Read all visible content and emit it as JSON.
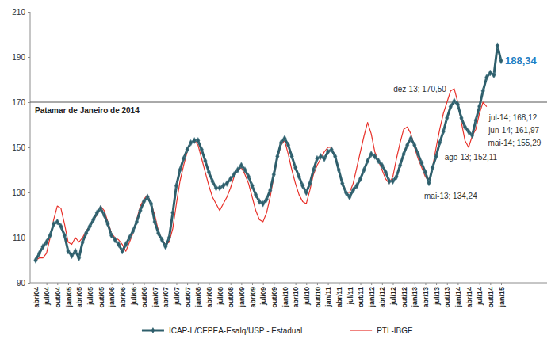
{
  "chart_data": {
    "type": "line",
    "categories": [
      "abr/04",
      null,
      null,
      "jul/04",
      null,
      null,
      "out/04",
      null,
      null,
      "jan/05",
      null,
      null,
      "abr/05",
      null,
      null,
      "jul/05",
      null,
      null,
      "out/05",
      null,
      null,
      "jan/06",
      null,
      null,
      "abr/06",
      null,
      null,
      "jul/06",
      null,
      null,
      "out/06",
      null,
      null,
      "jan/07",
      null,
      null,
      "abr/07",
      null,
      null,
      "jul/07",
      null,
      null,
      "out/07",
      null,
      null,
      "jan/08",
      null,
      null,
      "abr/08",
      null,
      null,
      "jul/08",
      null,
      null,
      "out/08",
      null,
      null,
      "jan/09",
      null,
      null,
      "abr/09",
      null,
      null,
      "jul/09",
      null,
      null,
      "out/09",
      null,
      null,
      "jan/10",
      null,
      null,
      "abr/10",
      null,
      null,
      "jul/10",
      null,
      null,
      "out/10",
      null,
      null,
      "jan/11",
      null,
      null,
      "abr/11",
      null,
      null,
      "jul/11",
      null,
      null,
      "out/11",
      null,
      null,
      "jan/12",
      null,
      null,
      "abr/12",
      null,
      null,
      "jul/12",
      null,
      null,
      "out/12",
      null,
      null,
      "jan/13",
      null,
      null,
      "abr/13",
      null,
      null,
      "jul/13",
      null,
      null,
      "out/13",
      null,
      null,
      "jan/14",
      null,
      null,
      "abr/14",
      null,
      null,
      "jul/14",
      null,
      null,
      "out/14",
      null,
      null,
      "jan/15"
    ],
    "series": [
      {
        "name": "ICAP-L/CEPEA-Esalq/USP - Estadual",
        "color": "#2e5e6b",
        "marker": "diamond",
        "line_style": "solid",
        "values": [
          100,
          103,
          106,
          108,
          111,
          116,
          117,
          115,
          111,
          104,
          102,
          104,
          101,
          108,
          112,
          115,
          118,
          121,
          123,
          120,
          116,
          111,
          109,
          107,
          104,
          107,
          110,
          113,
          117,
          122,
          126,
          128,
          125,
          117,
          112,
          109,
          106,
          110,
          121,
          133,
          140,
          145,
          149,
          152,
          153,
          153,
          149,
          144,
          139,
          135,
          132,
          132,
          133,
          134,
          136,
          138,
          140,
          142,
          140,
          137,
          133,
          129,
          126,
          125,
          127,
          131,
          138,
          146,
          152,
          154,
          151,
          146,
          141,
          137,
          133,
          130,
          134,
          140,
          145,
          146,
          145,
          148,
          149,
          146,
          140,
          134,
          130,
          128,
          131,
          133,
          136,
          140,
          144,
          147,
          146,
          144,
          142,
          139,
          135,
          135,
          137,
          142,
          147,
          151,
          154,
          151,
          147,
          143,
          139,
          134.24,
          141,
          146,
          152.11,
          157,
          163,
          168,
          170.5,
          169,
          163,
          159,
          157,
          155.29,
          161.97,
          168.12,
          175,
          181,
          183,
          182,
          195,
          188.34
        ]
      },
      {
        "name": "PTL-IBGE",
        "color": "#e8312a",
        "marker": "none",
        "line_style": "solid",
        "values": [
          100,
          101,
          101,
          103,
          110,
          118,
          124,
          123,
          116,
          108,
          107,
          110,
          108,
          110,
          113,
          115,
          118,
          120,
          124,
          122,
          117,
          112,
          110,
          109,
          107,
          104,
          108,
          112,
          118,
          124,
          127,
          129,
          125,
          120,
          113,
          109,
          107,
          108,
          114,
          125,
          135,
          142,
          148,
          152,
          153,
          151,
          145,
          139,
          133,
          128,
          125,
          122,
          125,
          128,
          132,
          137,
          140,
          141,
          138,
          134,
          128,
          122,
          118,
          117,
          121,
          128,
          137,
          145,
          151,
          153,
          147,
          140,
          134,
          129,
          126,
          125,
          131,
          138,
          142,
          145,
          148,
          150,
          150,
          146,
          140,
          134,
          130,
          130,
          134,
          141,
          148,
          155,
          161,
          156,
          148,
          144,
          140,
          136,
          134,
          137,
          145,
          152,
          158,
          159,
          156,
          150,
          145,
          141,
          137,
          135,
          141,
          150,
          158,
          165,
          170,
          175,
          176,
          170,
          161,
          153,
          150,
          155,
          158,
          165,
          170,
          168,
          null,
          null,
          null,
          null
        ]
      }
    ],
    "ylim": [
      90,
      210
    ],
    "yticks": [
      90,
      110,
      130,
      150,
      170,
      190,
      210
    ],
    "grid": false,
    "legend": "bottom",
    "reference_lines": [
      {
        "value": 170,
        "label": "Patamar de Janeiro de 2014"
      }
    ],
    "annotations": [
      {
        "text": "dez-13; 170,50",
        "value": 170.5
      },
      {
        "text": "ago-13; 152,11",
        "value": 152.11
      },
      {
        "text": "mai-13; 134,24",
        "value": 134.24
      },
      {
        "text": "jul-14; 168,12",
        "value": 168.12
      },
      {
        "text": "jun-14; 161,97",
        "value": 161.97
      },
      {
        "text": "mai-14; 155,29",
        "value": 155.29
      },
      {
        "text": "188,34",
        "value": 188.34
      }
    ]
  }
}
